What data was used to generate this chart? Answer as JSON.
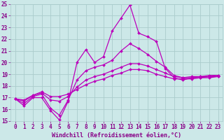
{
  "xlabel": "Windchill (Refroidissement éolien,°C)",
  "bg_color": "#cce8e8",
  "grid_color": "#aacccc",
  "line_color": "#bb00bb",
  "ylim": [
    15,
    25
  ],
  "xlim": [
    -0.5,
    23.5
  ],
  "yticks": [
    15,
    16,
    17,
    18,
    19,
    20,
    21,
    22,
    23,
    24,
    25
  ],
  "xticks": [
    0,
    1,
    2,
    3,
    4,
    5,
    6,
    7,
    8,
    9,
    10,
    11,
    12,
    13,
    14,
    15,
    16,
    17,
    18,
    19,
    20,
    21,
    22,
    23
  ],
  "lines": [
    {
      "x": [
        0,
        1,
        2,
        3,
        4,
        5,
        6,
        7,
        8,
        9,
        10,
        11,
        12,
        13,
        14,
        15,
        16,
        17,
        18,
        19,
        20,
        21,
        22,
        23
      ],
      "y": [
        16.9,
        16.3,
        17.0,
        17.0,
        15.9,
        15.1,
        16.7,
        20.0,
        21.1,
        20.0,
        20.5,
        22.7,
        23.8,
        24.9,
        22.5,
        22.2,
        21.8,
        19.5,
        18.7,
        18.5,
        18.7,
        18.7,
        18.8,
        18.8
      ]
    },
    {
      "x": [
        0,
        1,
        2,
        3,
        4,
        5,
        6,
        7,
        8,
        9,
        10,
        11,
        12,
        13,
        14,
        15,
        16,
        17,
        18,
        19,
        20,
        21,
        22,
        23
      ],
      "y": [
        16.9,
        16.5,
        17.1,
        17.3,
        16.1,
        15.5,
        16.8,
        18.5,
        19.3,
        19.6,
        19.8,
        20.2,
        21.0,
        21.6,
        21.2,
        20.7,
        20.1,
        19.6,
        18.9,
        18.7,
        18.8,
        18.8,
        18.9,
        18.9
      ]
    },
    {
      "x": [
        0,
        1,
        2,
        3,
        4,
        5,
        6,
        7,
        8,
        9,
        10,
        11,
        12,
        13,
        14,
        15,
        16,
        17,
        18,
        19,
        20,
        21,
        22,
        23
      ],
      "y": [
        16.9,
        16.7,
        17.2,
        17.4,
        16.8,
        16.7,
        17.1,
        17.9,
        18.5,
        18.8,
        19.0,
        19.3,
        19.6,
        19.9,
        19.9,
        19.7,
        19.4,
        19.1,
        18.8,
        18.7,
        18.7,
        18.8,
        18.8,
        18.9
      ]
    },
    {
      "x": [
        0,
        1,
        2,
        3,
        4,
        5,
        6,
        7,
        8,
        9,
        10,
        11,
        12,
        13,
        14,
        15,
        16,
        17,
        18,
        19,
        20,
        21,
        22,
        23
      ],
      "y": [
        16.9,
        16.8,
        17.2,
        17.5,
        17.1,
        17.1,
        17.3,
        17.7,
        18.1,
        18.4,
        18.6,
        18.9,
        19.1,
        19.4,
        19.4,
        19.3,
        19.0,
        18.8,
        18.6,
        18.6,
        18.6,
        18.7,
        18.7,
        18.8
      ]
    }
  ],
  "marker": "D",
  "markersize": 2.0,
  "linewidth": 0.9,
  "tick_fontsize": 5.5,
  "label_fontsize": 6.0,
  "tick_color": "#880088",
  "label_color": "#880088"
}
